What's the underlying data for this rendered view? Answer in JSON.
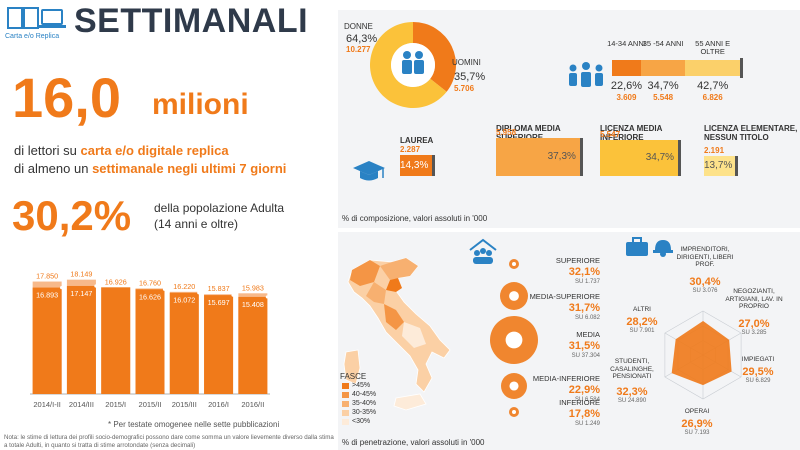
{
  "header": {
    "title": "SETTIMANALI",
    "logo_label": "Carta e/o Replica"
  },
  "headline": {
    "number": "16,0",
    "unit": "milioni",
    "line1_pre": "di lettori su ",
    "line1_hl": "carta e/o digitale replica",
    "line2_pre": "di almeno un ",
    "line2_hl": "settimanale negli ultimi 7 giorni",
    "pct": "30,2%",
    "pct_line1": "della popolazione Adulta",
    "pct_line2": "(14 anni e oltre)"
  },
  "note": "* Per testate omogenee nelle sette pubblicazioni",
  "footnote": "Nota: le stime di lettura dei profili socio-demografici possono dare come somma un valore lievemente diverso dalla stima a totale Adulti, in quanto si tratta di stime arrotondate (senza decimali)",
  "chart_data": [
    {
      "type": "bar",
      "categories": [
        "2014/I-II",
        "2014/III",
        "2015/I",
        "2015/II",
        "2015/III",
        "2016/I",
        "2016/II"
      ],
      "series": [
        {
          "values": [
            17850,
            18149,
            16926,
            16760,
            16220,
            15837,
            15983
          ]
        },
        {
          "values": [
            16893,
            17147,
            null,
            16626,
            16072,
            15697,
            15408
          ]
        }
      ],
      "labels_top": [
        "17.850",
        "18.149",
        "16.926",
        "16.760",
        "16.220",
        "15.837",
        "15.983"
      ],
      "labels_inner": [
        "16.893",
        "17.147",
        "",
        "16.626",
        "16.072",
        "15.697",
        "15.408"
      ],
      "ylim": [
        0,
        20000
      ]
    },
    {
      "type": "pie",
      "slices": [
        {
          "name": "DONNE",
          "pct": "64,3%",
          "value": "10.277",
          "share": 64.3
        },
        {
          "name": "UOMINI",
          "pct": "35,7%",
          "value": "5.706",
          "share": 35.7
        }
      ]
    },
    {
      "type": "bar",
      "orientation": "horizontal-stacked",
      "segments": [
        {
          "name": "14-34 ANNI",
          "pct": "22,6%",
          "value": "3.609",
          "share": 22.6,
          "color": "#f07a1a"
        },
        {
          "name": "35 -54 ANNI",
          "pct": "34,7%",
          "value": "5.548",
          "share": 34.7,
          "color": "#f7a545"
        },
        {
          "name": "55 ANNI E OLTRE",
          "pct": "42,7%",
          "value": "6.826",
          "share": 42.7,
          "color": "#fbd06a"
        }
      ]
    },
    {
      "type": "bar",
      "categories": [
        {
          "name": "LAUREA",
          "value": "2.287",
          "pct": "14,3%",
          "share": 14.3,
          "color": "#f07a1a"
        },
        {
          "name": "DIPLOMA MEDIA SUPERIORE",
          "value": "5.958",
          "pct": "37,3%",
          "share": 37.3,
          "color": "#f7a545"
        },
        {
          "name": "LICENZA MEDIA INFERIORE",
          "value": "5.547",
          "pct": "34,7%",
          "share": 34.7,
          "color": "#fbc23a"
        },
        {
          "name": "LICENZA ELEMENTARE, NESSUN TITOLO",
          "value": "2.191",
          "pct": "13,7%",
          "share": 13.7,
          "color": "#fde28a"
        }
      ],
      "caption": "% di composizione, valori assoluti in '000"
    },
    {
      "type": "scatter",
      "items": [
        {
          "name": "SUPERIORE",
          "pct": "32,1%",
          "su": "SU 1.737",
          "share": 32.1
        },
        {
          "name": "MEDIA-SUPERIORE",
          "pct": "31,7%",
          "su": "SU 6.082",
          "share": 31.7
        },
        {
          "name": "MEDIA",
          "pct": "31,5%",
          "su": "SU 37.304",
          "share": 31.5
        },
        {
          "name": "MEDIA-INFERIORE",
          "pct": "22,9%",
          "su": "SU 6.584",
          "share": 22.9
        },
        {
          "name": "INFERIORE",
          "pct": "17,8%",
          "su": "SU 1.249",
          "share": 17.8
        }
      ]
    },
    {
      "type": "radar",
      "axes": [
        {
          "name": "IMPRENDITORI, DIRIGENTI, LIBERI PROF.",
          "pct": "30,4%",
          "su": "SU 3.076",
          "share": 30.4
        },
        {
          "name": "NEGOZIANTI, ARTIGIANI, LAV. IN PROPRIO",
          "pct": "27,0%",
          "su": "SU 3.285",
          "share": 27.0
        },
        {
          "name": "IMPIEGATI",
          "pct": "29,5%",
          "su": "SU 6.829",
          "share": 29.5
        },
        {
          "name": "OPERAI",
          "pct": "26,9%",
          "su": "SU 7.193",
          "share": 26.9
        },
        {
          "name": "STUDENTI, CASALINGHE, PENSIONATI",
          "pct": "32,3%",
          "su": "SU 24.890",
          "share": 32.3
        },
        {
          "name": "ALTRI",
          "pct": "28,2%",
          "su": "SU 7.901",
          "share": 28.2
        }
      ]
    }
  ],
  "map": {
    "legend_title": "FASCE",
    "legend": [
      {
        "label": ">45%",
        "color": "#f07a1a"
      },
      {
        "label": "40-45%",
        "color": "#f49545"
      },
      {
        "label": "35-40%",
        "color": "#f7b070"
      },
      {
        "label": "30-35%",
        "color": "#fbd0a5"
      },
      {
        "label": "<30%",
        "color": "#fdebd9"
      }
    ],
    "caption": "% di penetrazione, valori assoluti in '000"
  }
}
